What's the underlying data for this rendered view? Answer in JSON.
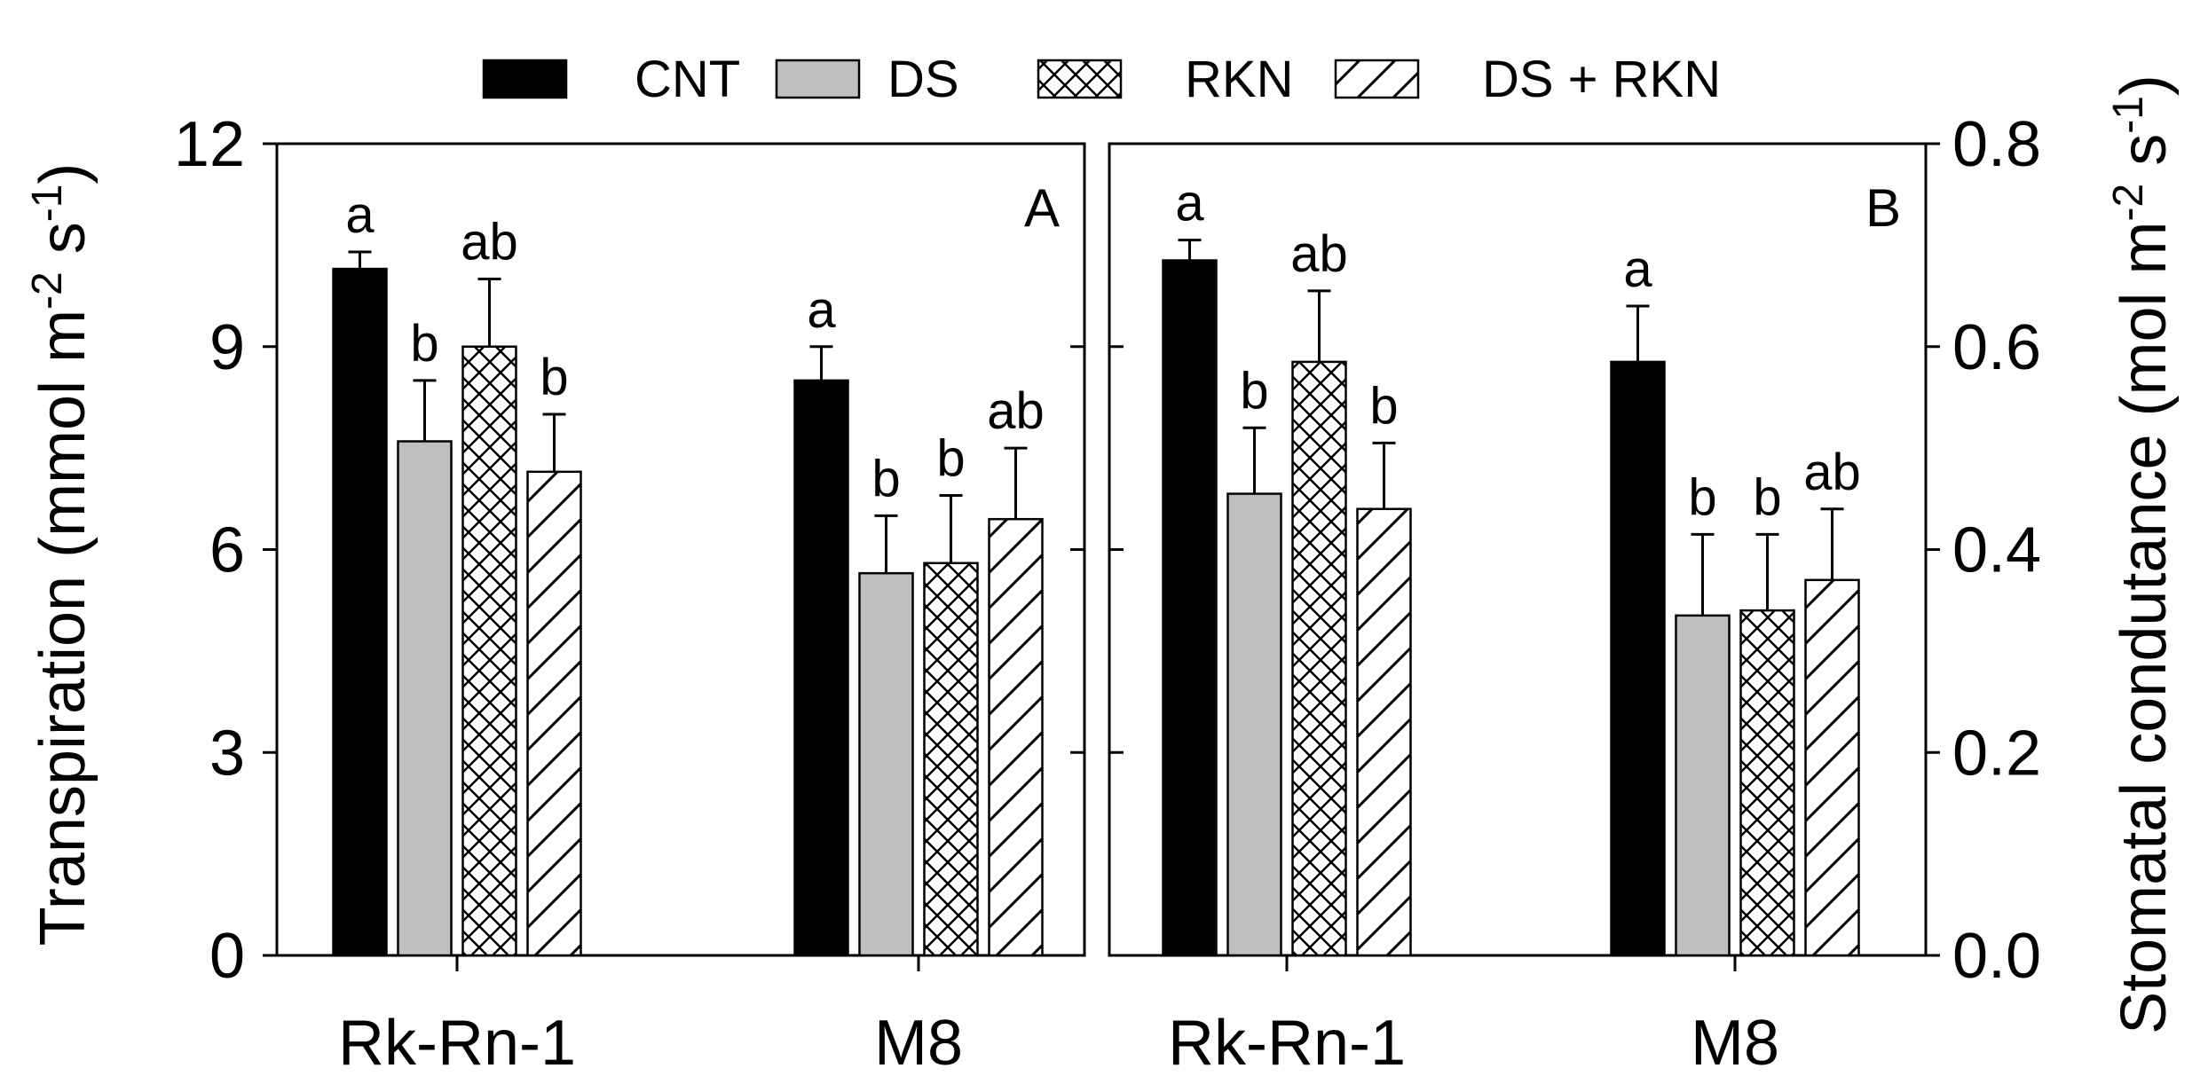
{
  "chart_data": {
    "type": "bar",
    "legend": {
      "position": "top",
      "entries": [
        {
          "name": "CNT",
          "fill": "#000000",
          "pattern": "solid"
        },
        {
          "name": "DS",
          "fill": "#bfbfbf",
          "pattern": "solid"
        },
        {
          "name": "RKN",
          "fill": "#ffffff",
          "pattern": "crosshatch"
        },
        {
          "name": "DS + RKN",
          "fill": "#ffffff",
          "pattern": "diagonal"
        }
      ]
    },
    "left_axis": {
      "title": "Transpiration  (mmol m",
      "title_sup1": "-2",
      "title_mid": " s",
      "title_sup2": "-1",
      "title_end": ")",
      "range": [
        0,
        12
      ],
      "ticks": [
        "0",
        "3",
        "6",
        "9",
        "12"
      ],
      "tick_values": [
        0,
        3,
        6,
        9,
        12
      ]
    },
    "right_axis": {
      "title": "Stomatal condutance (mol m",
      "title_sup1": "-2",
      "title_mid": " s",
      "title_sup2": "-1",
      "title_end": ")",
      "range": [
        0,
        0.8
      ],
      "ticks": [
        "0.0",
        "0.2",
        "0.4",
        "0.6",
        "0.8"
      ],
      "tick_values": [
        0,
        0.2,
        0.4,
        0.6,
        0.8
      ]
    },
    "panels": [
      {
        "label": "A",
        "axis": "left",
        "categories": [
          "Rk-Rn-1",
          "M8"
        ],
        "series": [
          {
            "name": "CNT",
            "values": [
              10.15,
              8.5
            ],
            "errors": [
              0.25,
              0.5
            ],
            "sig": [
              "a",
              "a"
            ]
          },
          {
            "name": "DS",
            "values": [
              7.6,
              5.65
            ],
            "errors": [
              0.9,
              0.85
            ],
            "sig": [
              "b",
              "b"
            ]
          },
          {
            "name": "RKN",
            "values": [
              9.0,
              5.8
            ],
            "errors": [
              1.0,
              1.0
            ],
            "sig": [
              "ab",
              "b"
            ]
          },
          {
            "name": "DS + RKN",
            "values": [
              7.15,
              6.45
            ],
            "errors": [
              0.85,
              1.05
            ],
            "sig": [
              "b",
              "ab"
            ]
          }
        ]
      },
      {
        "label": "B",
        "axis": "right",
        "categories": [
          "Rk-Rn-1",
          "M8"
        ],
        "series": [
          {
            "name": "CNT",
            "values": [
              0.685,
              0.585
            ],
            "errors": [
              0.02,
              0.055
            ],
            "sig": [
              "a",
              "a"
            ]
          },
          {
            "name": "DS",
            "values": [
              0.455,
              0.335
            ],
            "errors": [
              0.065,
              0.08
            ],
            "sig": [
              "b",
              "b"
            ]
          },
          {
            "name": "RKN",
            "values": [
              0.585,
              0.34
            ],
            "errors": [
              0.07,
              0.075
            ],
            "sig": [
              "ab",
              "b"
            ]
          },
          {
            "name": "DS + RKN",
            "values": [
              0.44,
              0.37
            ],
            "errors": [
              0.065,
              0.07
            ],
            "sig": [
              "b",
              "ab"
            ]
          }
        ]
      }
    ]
  }
}
